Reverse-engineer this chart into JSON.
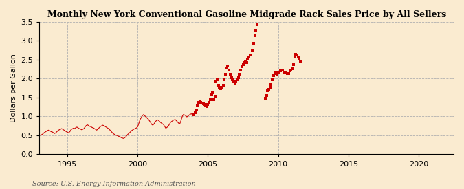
{
  "title": "Monthly New York Conventional Gasoline Midgrade Rack Sales Price by All Sellers",
  "ylabel": "Dollars per Gallon",
  "source": "Source: U.S. Energy Information Administration",
  "bg_color": "#faebd0",
  "dot_color": "#cc0000",
  "line_color": "#cc0000",
  "xlim": [
    1993.0,
    2022.5
  ],
  "ylim": [
    0.0,
    3.5
  ],
  "xticks": [
    1995,
    2000,
    2005,
    2010,
    2015,
    2020
  ],
  "yticks": [
    0.0,
    0.5,
    1.0,
    1.5,
    2.0,
    2.5,
    3.0,
    3.5
  ],
  "line_data": [
    [
      1993.08,
      0.5
    ],
    [
      1993.17,
      0.52
    ],
    [
      1993.25,
      0.54
    ],
    [
      1993.33,
      0.57
    ],
    [
      1993.42,
      0.59
    ],
    [
      1993.5,
      0.61
    ],
    [
      1993.58,
      0.63
    ],
    [
      1993.67,
      0.64
    ],
    [
      1993.75,
      0.62
    ],
    [
      1993.83,
      0.6
    ],
    [
      1993.92,
      0.59
    ],
    [
      1994.0,
      0.57
    ],
    [
      1994.08,
      0.55
    ],
    [
      1994.17,
      0.57
    ],
    [
      1994.25,
      0.6
    ],
    [
      1994.33,
      0.63
    ],
    [
      1994.42,
      0.65
    ],
    [
      1994.5,
      0.66
    ],
    [
      1994.58,
      0.68
    ],
    [
      1994.67,
      0.66
    ],
    [
      1994.75,
      0.64
    ],
    [
      1994.83,
      0.62
    ],
    [
      1994.92,
      0.6
    ],
    [
      1995.0,
      0.58
    ],
    [
      1995.08,
      0.57
    ],
    [
      1995.17,
      0.6
    ],
    [
      1995.25,
      0.65
    ],
    [
      1995.33,
      0.67
    ],
    [
      1995.42,
      0.69
    ],
    [
      1995.5,
      0.68
    ],
    [
      1995.58,
      0.7
    ],
    [
      1995.67,
      0.72
    ],
    [
      1995.75,
      0.7
    ],
    [
      1995.83,
      0.68
    ],
    [
      1995.92,
      0.67
    ],
    [
      1996.0,
      0.65
    ],
    [
      1996.08,
      0.66
    ],
    [
      1996.17,
      0.68
    ],
    [
      1996.25,
      0.72
    ],
    [
      1996.33,
      0.76
    ],
    [
      1996.42,
      0.78
    ],
    [
      1996.5,
      0.76
    ],
    [
      1996.58,
      0.74
    ],
    [
      1996.67,
      0.73
    ],
    [
      1996.75,
      0.71
    ],
    [
      1996.83,
      0.7
    ],
    [
      1996.92,
      0.68
    ],
    [
      1997.0,
      0.66
    ],
    [
      1997.08,
      0.64
    ],
    [
      1997.17,
      0.67
    ],
    [
      1997.25,
      0.7
    ],
    [
      1997.33,
      0.73
    ],
    [
      1997.42,
      0.75
    ],
    [
      1997.5,
      0.77
    ],
    [
      1997.58,
      0.76
    ],
    [
      1997.67,
      0.74
    ],
    [
      1997.75,
      0.72
    ],
    [
      1997.83,
      0.7
    ],
    [
      1997.92,
      0.68
    ],
    [
      1998.0,
      0.65
    ],
    [
      1998.08,
      0.62
    ],
    [
      1998.17,
      0.58
    ],
    [
      1998.25,
      0.55
    ],
    [
      1998.33,
      0.53
    ],
    [
      1998.42,
      0.51
    ],
    [
      1998.5,
      0.5
    ],
    [
      1998.58,
      0.49
    ],
    [
      1998.67,
      0.47
    ],
    [
      1998.75,
      0.46
    ],
    [
      1998.83,
      0.44
    ],
    [
      1998.92,
      0.43
    ],
    [
      1999.0,
      0.42
    ],
    [
      1999.08,
      0.44
    ],
    [
      1999.17,
      0.47
    ],
    [
      1999.25,
      0.51
    ],
    [
      1999.33,
      0.54
    ],
    [
      1999.42,
      0.57
    ],
    [
      1999.5,
      0.6
    ],
    [
      1999.58,
      0.63
    ],
    [
      1999.67,
      0.65
    ],
    [
      1999.75,
      0.67
    ],
    [
      1999.83,
      0.68
    ],
    [
      1999.92,
      0.7
    ],
    [
      2000.0,
      0.73
    ],
    [
      2000.08,
      0.82
    ],
    [
      2000.17,
      0.92
    ],
    [
      2000.25,
      0.97
    ],
    [
      2000.33,
      1.02
    ],
    [
      2000.42,
      1.05
    ],
    [
      2000.5,
      1.02
    ],
    [
      2000.58,
      0.99
    ],
    [
      2000.67,
      0.96
    ],
    [
      2000.75,
      0.93
    ],
    [
      2000.83,
      0.89
    ],
    [
      2000.92,
      0.84
    ],
    [
      2001.0,
      0.79
    ],
    [
      2001.08,
      0.77
    ],
    [
      2001.17,
      0.81
    ],
    [
      2001.25,
      0.86
    ],
    [
      2001.33,
      0.89
    ],
    [
      2001.42,
      0.91
    ],
    [
      2001.5,
      0.89
    ],
    [
      2001.58,
      0.86
    ],
    [
      2001.67,
      0.83
    ],
    [
      2001.75,
      0.81
    ],
    [
      2001.83,
      0.79
    ],
    [
      2001.92,
      0.74
    ],
    [
      2002.0,
      0.69
    ],
    [
      2002.08,
      0.71
    ],
    [
      2002.17,
      0.74
    ],
    [
      2002.25,
      0.79
    ],
    [
      2002.33,
      0.84
    ],
    [
      2002.42,
      0.87
    ],
    [
      2002.5,
      0.89
    ],
    [
      2002.58,
      0.91
    ],
    [
      2002.67,
      0.92
    ],
    [
      2002.75,
      0.89
    ],
    [
      2002.83,
      0.86
    ],
    [
      2002.92,
      0.82
    ],
    [
      2003.0,
      0.81
    ],
    [
      2003.08,
      0.89
    ],
    [
      2003.17,
      1.0
    ],
    [
      2003.25,
      1.05
    ],
    [
      2003.33,
      1.04
    ],
    [
      2003.42,
      1.02
    ],
    [
      2003.5,
      0.99
    ],
    [
      2003.58,
      1.01
    ],
    [
      2003.67,
      1.04
    ],
    [
      2003.75,
      1.06
    ],
    [
      2003.83,
      1.07
    ],
    [
      2003.92,
      1.04
    ]
  ],
  "scatter_data": [
    [
      2004.0,
      1.05
    ],
    [
      2004.08,
      1.1
    ],
    [
      2004.17,
      1.17
    ],
    [
      2004.25,
      1.28
    ],
    [
      2004.33,
      1.38
    ],
    [
      2004.42,
      1.4
    ],
    [
      2004.5,
      1.37
    ],
    [
      2004.58,
      1.35
    ],
    [
      2004.67,
      1.34
    ],
    [
      2004.75,
      1.32
    ],
    [
      2004.83,
      1.29
    ],
    [
      2004.92,
      1.27
    ],
    [
      2005.0,
      1.32
    ],
    [
      2005.08,
      1.37
    ],
    [
      2005.17,
      1.44
    ],
    [
      2005.25,
      1.57
    ],
    [
      2005.33,
      1.62
    ],
    [
      2005.42,
      1.45
    ],
    [
      2005.5,
      1.53
    ],
    [
      2005.58,
      1.92
    ],
    [
      2005.67,
      1.97
    ],
    [
      2005.75,
      1.83
    ],
    [
      2005.83,
      1.78
    ],
    [
      2005.92,
      1.73
    ],
    [
      2006.0,
      1.78
    ],
    [
      2006.08,
      1.83
    ],
    [
      2006.17,
      1.97
    ],
    [
      2006.25,
      2.12
    ],
    [
      2006.33,
      2.28
    ],
    [
      2006.42,
      2.33
    ],
    [
      2006.5,
      2.22
    ],
    [
      2006.58,
      2.12
    ],
    [
      2006.67,
      2.02
    ],
    [
      2006.75,
      1.97
    ],
    [
      2006.83,
      1.92
    ],
    [
      2006.92,
      1.87
    ],
    [
      2007.0,
      1.92
    ],
    [
      2007.08,
      1.97
    ],
    [
      2007.17,
      2.02
    ],
    [
      2007.25,
      2.12
    ],
    [
      2007.33,
      2.22
    ],
    [
      2007.42,
      2.32
    ],
    [
      2007.5,
      2.37
    ],
    [
      2007.58,
      2.42
    ],
    [
      2007.67,
      2.47
    ],
    [
      2007.75,
      2.42
    ],
    [
      2007.83,
      2.52
    ],
    [
      2007.92,
      2.57
    ],
    [
      2008.0,
      2.62
    ],
    [
      2008.17,
      2.73
    ],
    [
      2008.25,
      2.93
    ],
    [
      2008.33,
      3.13
    ],
    [
      2008.42,
      3.28
    ],
    [
      2008.5,
      3.42
    ],
    [
      2009.08,
      1.48
    ],
    [
      2009.17,
      1.55
    ],
    [
      2009.25,
      1.68
    ],
    [
      2009.33,
      1.72
    ],
    [
      2009.42,
      1.78
    ],
    [
      2009.5,
      1.85
    ],
    [
      2009.58,
      1.98
    ],
    [
      2009.67,
      2.08
    ],
    [
      2009.75,
      2.13
    ],
    [
      2009.83,
      2.18
    ],
    [
      2009.92,
      2.12
    ],
    [
      2010.0,
      2.17
    ],
    [
      2010.08,
      2.17
    ],
    [
      2010.17,
      2.2
    ],
    [
      2010.25,
      2.22
    ],
    [
      2010.33,
      2.22
    ],
    [
      2010.42,
      2.18
    ],
    [
      2010.5,
      2.17
    ],
    [
      2010.58,
      2.16
    ],
    [
      2010.67,
      2.13
    ],
    [
      2010.75,
      2.14
    ],
    [
      2010.83,
      2.2
    ],
    [
      2010.92,
      2.22
    ],
    [
      2011.0,
      2.27
    ],
    [
      2011.08,
      2.37
    ],
    [
      2011.17,
      2.57
    ],
    [
      2011.25,
      2.65
    ],
    [
      2011.33,
      2.62
    ],
    [
      2011.42,
      2.58
    ],
    [
      2011.5,
      2.52
    ],
    [
      2011.58,
      2.47
    ]
  ]
}
